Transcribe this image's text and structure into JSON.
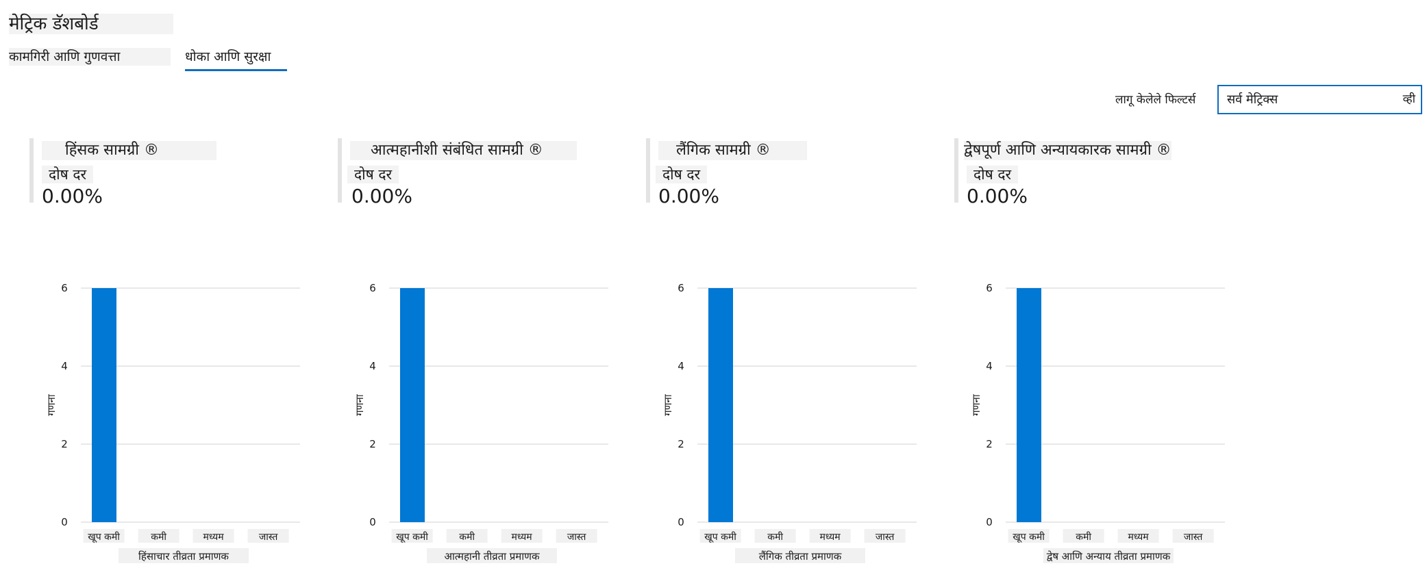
{
  "page": {
    "title": "मेट्रिक डॅशबोर्ड"
  },
  "tabs": [
    {
      "label": "कामगिरी आणि गुणवत्ता",
      "active": false
    },
    {
      "label": "धोका आणि सुरक्षा",
      "active": true
    }
  ],
  "filter": {
    "label": "लागू केलेले फिल्टर्स",
    "value": "सर्व मेट्रिक्स",
    "more": "व्ही"
  },
  "colors": {
    "accent": "#0f6cbd",
    "bar": "#0078d4"
  },
  "panels": [
    {
      "title": "हिंसक सामग्री ®",
      "rate_label": "दोष दर",
      "rate_value": "0.00%",
      "chart_data": {
        "type": "bar",
        "categories": [
          "खूप कमी",
          "कमी",
          "मध्यम",
          "जास्त"
        ],
        "values": [
          6,
          0,
          0,
          0
        ],
        "y_ticks": [
          "0",
          "2",
          "4",
          "6"
        ],
        "ylim": [
          0,
          6
        ],
        "ylabel": "गणना",
        "xlabel": "हिंसाचार तीव्रता प्रमाणक"
      }
    },
    {
      "title": "आत्महानीशी संबंधित सामग्री ®",
      "rate_label": "दोष दर",
      "rate_value": "0.00%",
      "chart_data": {
        "type": "bar",
        "categories": [
          "खूप कमी",
          "कमी",
          "मध्यम",
          "जास्त"
        ],
        "values": [
          6,
          0,
          0,
          0
        ],
        "y_ticks": [
          "0",
          "2",
          "4",
          "6"
        ],
        "ylim": [
          0,
          6
        ],
        "ylabel": "गणना",
        "xlabel": "आत्महानी तीव्रता प्रमाणक"
      }
    },
    {
      "title": "लैंगिक सामग्री ®",
      "rate_label": "दोष दर",
      "rate_value": "0.00%",
      "chart_data": {
        "type": "bar",
        "categories": [
          "खूप कमी",
          "कमी",
          "मध्यम",
          "जास्त"
        ],
        "values": [
          6,
          0,
          0,
          0
        ],
        "y_ticks": [
          "0",
          "2",
          "4",
          "6"
        ],
        "ylim": [
          0,
          6
        ],
        "ylabel": "गणना",
        "xlabel": "लैंगिक तीव्रता प्रमाणक"
      }
    },
    {
      "title": "द्वेषपूर्ण आणि अन्यायकारक सामग्री ®",
      "rate_label": "दोष दर",
      "rate_value": "0.00%",
      "chart_data": {
        "type": "bar",
        "categories": [
          "खूप कमी",
          "कमी",
          "मध्यम",
          "जास्त"
        ],
        "values": [
          6,
          0,
          0,
          0
        ],
        "y_ticks": [
          "0",
          "2",
          "4",
          "6"
        ],
        "ylim": [
          0,
          6
        ],
        "ylabel": "गणना",
        "xlabel": "द्वेष आणि अन्याय तीव्रता प्रमाणक"
      }
    }
  ]
}
